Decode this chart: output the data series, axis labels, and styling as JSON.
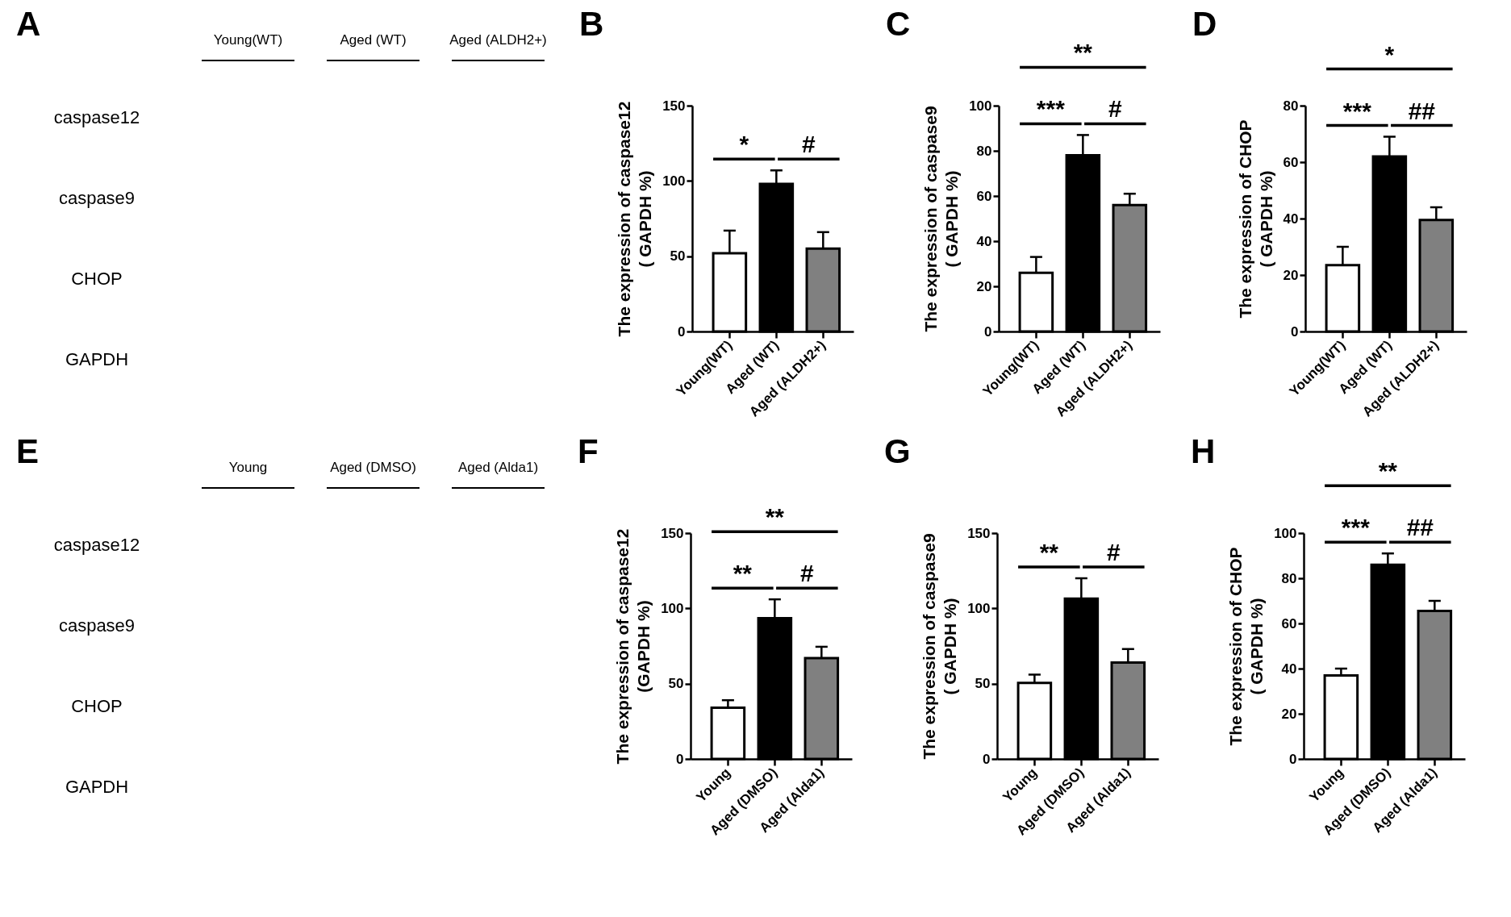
{
  "chart_data": [
    {
      "type": "other",
      "title": "A",
      "categories": [
        "Young(WT)",
        "Aged (WT)",
        "Aged (ALDH2+)"
      ],
      "y_categories": [
        "caspase12",
        "caspase9",
        "CHOP",
        "GAPDH"
      ]
    },
    {
      "type": "bar",
      "title": "B",
      "ylabel": "The expression of caspase12\n( GAPDH %)",
      "categories": [
        "Young(WT)",
        "Aged (WT)",
        "Aged (ALDH2+)"
      ],
      "values": [
        52,
        98,
        55
      ],
      "colors": [
        "#ffffff",
        "#000000",
        "#808080"
      ],
      "errors": [
        [
          52,
          67
        ],
        [
          98,
          107
        ],
        [
          55,
          66
        ]
      ],
      "ylim": [
        0,
        150
      ],
      "yticks": [
        0,
        50,
        100,
        150
      ],
      "annotations": [
        "*",
        "#"
      ]
    },
    {
      "type": "bar",
      "title": "C",
      "ylabel": "The expression of caspase9\n( GAPDH %)",
      "categories": [
        "Young(WT)",
        "Aged (WT)",
        "Aged (ALDH2+)"
      ],
      "values": [
        26,
        78,
        56
      ],
      "colors": [
        "#ffffff",
        "#000000",
        "#808080"
      ],
      "errors": [
        [
          26,
          33
        ],
        [
          78,
          87
        ],
        [
          56,
          61
        ]
      ],
      "ylim": [
        0,
        100
      ],
      "yticks": [
        0,
        20,
        40,
        60,
        80,
        100
      ],
      "annotations": [
        "**",
        "***",
        "#"
      ]
    },
    {
      "type": "bar",
      "title": "D",
      "ylabel": "The expression of CHOP\n( GAPDH %)",
      "categories": [
        "Young(WT)",
        "Aged (WT)",
        "Aged (ALDH2+)"
      ],
      "values": [
        23.5,
        62,
        39.5
      ],
      "colors": [
        "#ffffff",
        "#000000",
        "#808080"
      ],
      "errors": [
        [
          23.5,
          30
        ],
        [
          62,
          69
        ],
        [
          39.5,
          44
        ]
      ],
      "ylim": [
        0,
        80
      ],
      "yticks": [
        0,
        20,
        40,
        60,
        80
      ],
      "annotations": [
        "*",
        "***",
        "##"
      ]
    },
    {
      "type": "other",
      "title": "E",
      "categories": [
        "Young",
        "Aged (DMSO)",
        "Aged (Alda1)"
      ],
      "y_categories": [
        "caspase12",
        "caspase9",
        "CHOP",
        "GAPDH"
      ]
    },
    {
      "type": "bar",
      "title": "F",
      "ylabel": "The expression of caspase12\n(GAPDH %)",
      "categories": [
        "Young",
        "Aged (DMSO)",
        "Aged (Alda1)"
      ],
      "values": [
        34,
        93.5,
        67
      ],
      "colors": [
        "#ffffff",
        "#000000",
        "#808080"
      ],
      "errors": [
        [
          34,
          39
        ],
        [
          93.5,
          106
        ],
        [
          67,
          74.5
        ]
      ],
      "ylim": [
        0,
        150
      ],
      "yticks": [
        0,
        50,
        100,
        150
      ],
      "annotations": [
        "**",
        "**",
        "#"
      ]
    },
    {
      "type": "bar",
      "title": "G",
      "ylabel": "The expression of caspase9\n( GAPDH %)",
      "categories": [
        "Young",
        "Aged (DMSO)",
        "Aged (Alda1)"
      ],
      "values": [
        50.5,
        106.5,
        64
      ],
      "colors": [
        "#ffffff",
        "#000000",
        "#808080"
      ],
      "errors": [
        [
          50.5,
          56
        ],
        [
          106.5,
          120
        ],
        [
          64,
          73
        ]
      ],
      "ylim": [
        0,
        150
      ],
      "yticks": [
        0,
        50,
        100,
        150
      ],
      "annotations": [
        "**",
        "#"
      ]
    },
    {
      "type": "bar",
      "title": "H",
      "ylabel": "The expression of CHOP\n( GAPDH %)",
      "categories": [
        "Young",
        "Aged (DMSO)",
        "Aged (Alda1)"
      ],
      "values": [
        37,
        86,
        65.5
      ],
      "colors": [
        "#ffffff",
        "#000000",
        "#808080"
      ],
      "errors": [
        [
          37,
          40
        ],
        [
          86,
          91
        ],
        [
          65.5,
          70
        ]
      ],
      "ylim": [
        0,
        100
      ],
      "yticks": [
        0,
        20,
        40,
        60,
        80,
        100
      ],
      "annotations": [
        "**",
        "***",
        "##"
      ]
    }
  ]
}
